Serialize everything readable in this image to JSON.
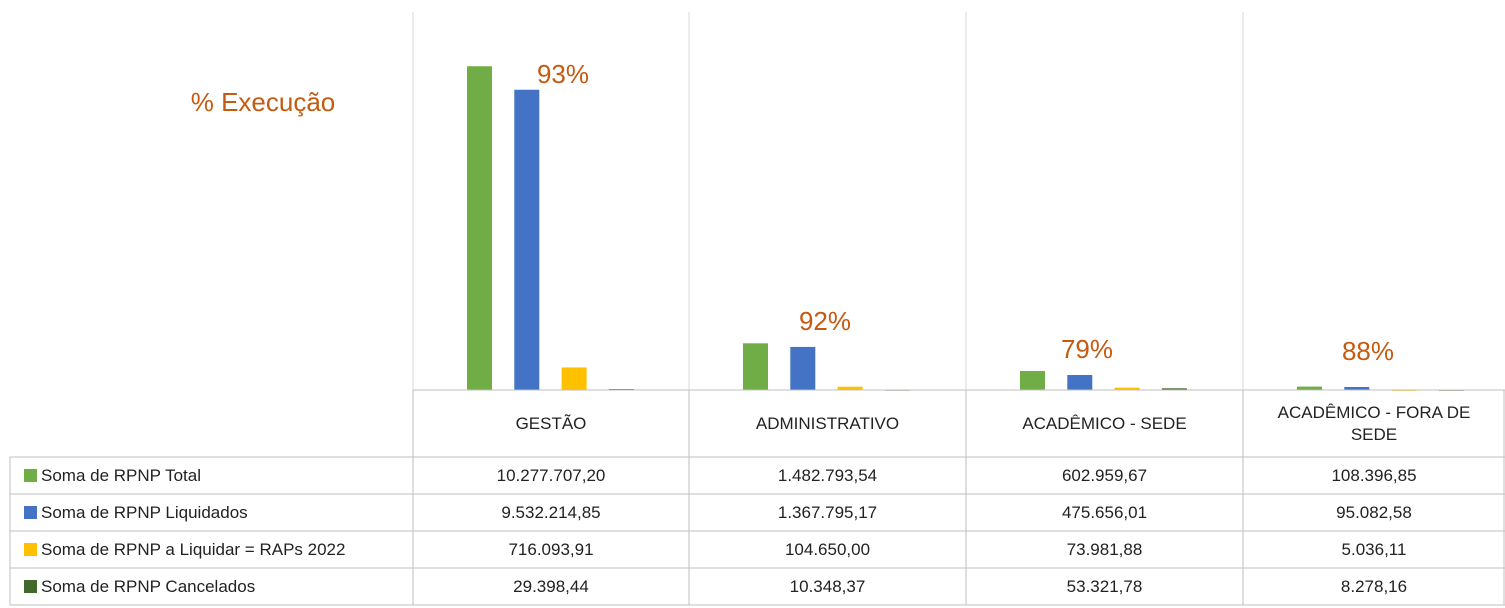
{
  "chart_data": {
    "type": "bar",
    "title": "% Execução",
    "categories": [
      "GESTÃO",
      "ADMINISTRATIVO",
      "ACADÊMICO - SEDE",
      "ACADÊMICO - FORA DE SEDE"
    ],
    "annotations": [
      "93%",
      "92%",
      "79%",
      "88%"
    ],
    "series": [
      {
        "name": "Soma de RPNP Total",
        "color": "#70ad47",
        "values": [
          10277707.2,
          1482793.54,
          602959.67,
          108396.85
        ],
        "value_labels": [
          "10.277.707,20",
          "1.482.793,54",
          "602.959,67",
          "108.396,85"
        ]
      },
      {
        "name": "Soma de RPNP Liquidados",
        "color": "#4472c4",
        "values": [
          9532214.85,
          1367795.17,
          475656.01,
          95082.58
        ],
        "value_labels": [
          "9.532.214,85",
          "1.367.795,17",
          "475.656,01",
          "95.082,58"
        ]
      },
      {
        "name": "Soma de RPNP a Liquidar = RAPs 2022",
        "color": "#ffc000",
        "values": [
          716093.91,
          104650.0,
          73981.88,
          5036.11
        ],
        "value_labels": [
          "716.093,91",
          "104.650,00",
          "73.981,88",
          "5.036,11"
        ]
      },
      {
        "name": "Soma de RPNP Cancelados",
        "color": "#43682b",
        "values": [
          29398.44,
          10348.37,
          53321.78,
          8278.16
        ],
        "value_labels": [
          "29.398,44",
          "10.348,37",
          "53.321,78",
          "8.278,16"
        ]
      }
    ],
    "ylim": [
      0,
      12000000
    ]
  }
}
